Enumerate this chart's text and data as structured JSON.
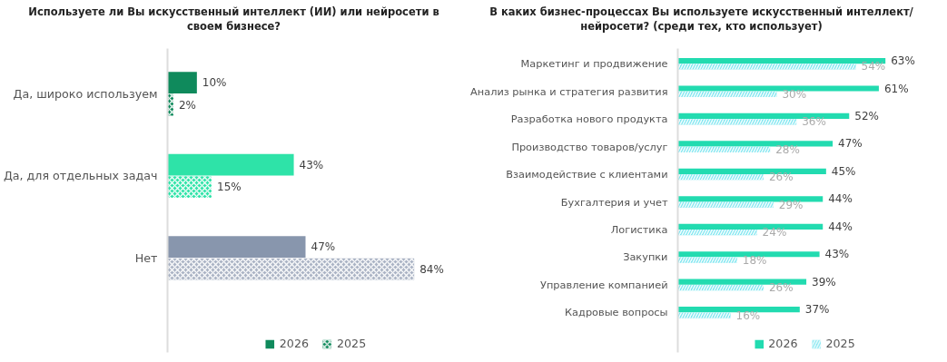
{
  "chart_data": [
    {
      "type": "bar",
      "orientation": "horizontal",
      "title": "Используете ли Вы искусственный интеллект (ИИ) или нейросети в своем бизнесе?",
      "categories": [
        "Да, широко используем",
        "Да, для отдельных задач",
        "Нет"
      ],
      "tick_labels": "y",
      "grid": false,
      "legend": "bottom",
      "series": [
        {
          "name": "2026",
          "colors": [
            "#0f8a5c",
            "#2ee3a8",
            "#8896ad"
          ],
          "values": [
            10,
            43,
            47
          ],
          "value_labels": [
            "10%",
            "43%",
            "47%"
          ]
        },
        {
          "name": "2025",
          "colors": [
            "#0f8a5c",
            "#2ee3a8",
            "#aab3c4"
          ],
          "values": [
            2,
            15,
            84
          ],
          "value_labels": [
            "2%",
            "15%",
            "84%"
          ]
        }
      ]
    },
    {
      "type": "bar",
      "orientation": "horizontal",
      "title": "В каких бизнес-процессах Вы используете искусственный интеллект/нейросети? (среди тех, кто использует)",
      "categories": [
        "Маркетинг и продвижение",
        "Анализ рынка и стратегия развития",
        "Разработка нового продукта",
        "Производство товаров/услуг",
        "Взаимодействие с клиентами",
        "Бухгалтерия и учет",
        "Логистика",
        "Закупки",
        "Управление компанией",
        "Кадровые вопросы"
      ],
      "tick_labels": "y",
      "grid": false,
      "legend": "bottom",
      "series": [
        {
          "name": "2026",
          "color": "#22dbb0",
          "values": [
            63,
            61,
            52,
            47,
            45,
            44,
            44,
            43,
            39,
            37
          ],
          "value_labels": [
            "63%",
            "61%",
            "52%",
            "47%",
            "45%",
            "44%",
            "44%",
            "43%",
            "39%",
            "37%"
          ]
        },
        {
          "name": "2025",
          "color": "#7fe6f0",
          "values": [
            54,
            30,
            36,
            28,
            26,
            29,
            24,
            18,
            26,
            16
          ],
          "value_labels": [
            "54%",
            "30%",
            "36%",
            "28%",
            "26%",
            "29%",
            "24%",
            "18%",
            "26%",
            "16%"
          ]
        }
      ]
    }
  ]
}
